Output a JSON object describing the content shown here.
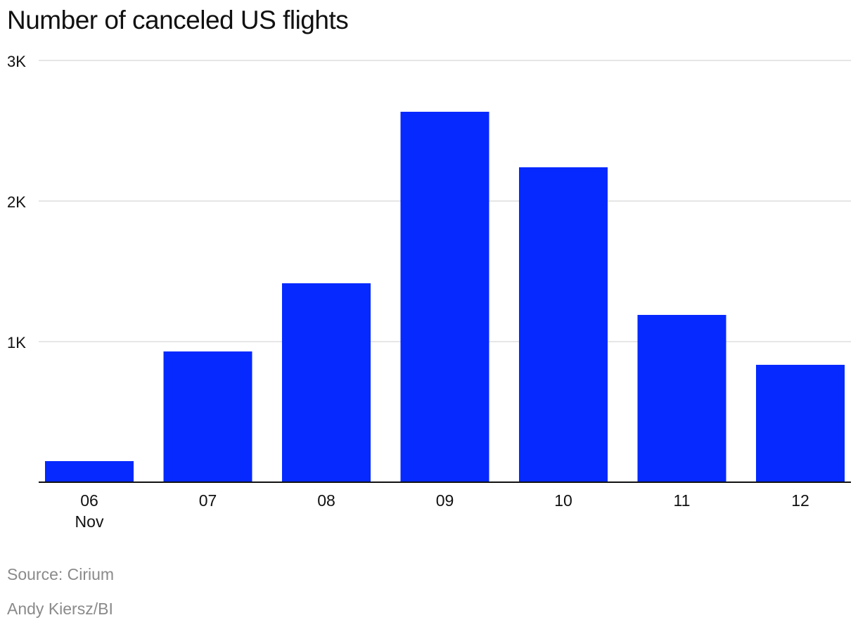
{
  "chart_data": {
    "type": "bar",
    "title": "Number of canceled US flights",
    "categories": [
      "06",
      "07",
      "08",
      "09",
      "10",
      "11",
      "12"
    ],
    "category_sublabels": [
      "Nov",
      "",
      "",
      "",
      "",
      "",
      ""
    ],
    "values": [
      150,
      930,
      1415,
      2635,
      2240,
      1190,
      835
    ],
    "ylim": [
      0,
      3000
    ],
    "yticks": [
      1000,
      2000,
      3000
    ],
    "ytick_labels": [
      "1K",
      "2K",
      "3K"
    ],
    "xlabel": "",
    "ylabel": "",
    "grid": true,
    "legend": "none"
  },
  "footer": {
    "source": "Source: Cirium",
    "credit": "Andy Kiersz/BI"
  },
  "colors": {
    "bar": "#0529FF",
    "grid": "#dddddd",
    "axis": "#111111",
    "footer_text": "#8a8a8a"
  }
}
